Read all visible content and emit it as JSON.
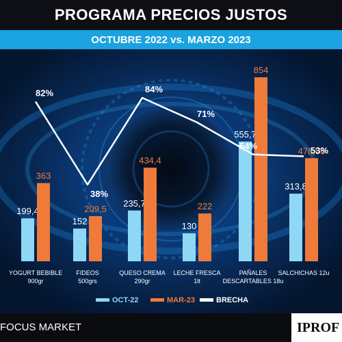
{
  "header": {
    "title": "PROGRAMA PRECIOS JUSTOS",
    "subtitle": "OCTUBRE 2022 vs. MARZO 2023"
  },
  "footer": {
    "source": "FOCUS MARKET",
    "brand": "IPROF"
  },
  "colors": {
    "oct22": "#8fd8f5",
    "mar23": "#f07a3a",
    "brecha": "#ffffff",
    "subtitle_bar": "#1aa3e0",
    "background": "#04152e"
  },
  "chart_data": {
    "type": "bar",
    "title": "PROGRAMA PRECIOS JUSTOS",
    "subtitle": "OCTUBRE 2022 vs. MARZO 2023",
    "categories": [
      [
        "YOGURT BEBIBLE",
        "900gr"
      ],
      [
        "FIDEOS",
        "500grs"
      ],
      [
        "QUESO CREMA",
        "290gr"
      ],
      [
        "LECHE FRESCA",
        "1lt"
      ],
      [
        "PAÑALES",
        "DESCARTABLES 18u"
      ],
      [
        "SALCHICHAS 12u"
      ]
    ],
    "series": [
      {
        "name": "OCT-22",
        "values": [
          199.4,
          152,
          235.7,
          130,
          555.7,
          313.8
        ],
        "labels": [
          "199,4",
          "152",
          "235,7",
          "130",
          "555,7",
          "313,8"
        ]
      },
      {
        "name": "MAR-23",
        "values": [
          363,
          209.5,
          434.4,
          222,
          854,
          478.56
        ],
        "labels": [
          "363",
          "209,5",
          "434,4",
          "222",
          "854",
          "478,56"
        ]
      }
    ],
    "line": {
      "name": "BRECHA",
      "values": [
        82,
        38,
        84,
        71,
        54,
        53
      ],
      "labels": [
        "82%",
        "38%",
        "84%",
        "71%",
        "54%",
        "53%"
      ]
    },
    "legend": [
      "OCT-22",
      "MAR-23",
      "BRECHA"
    ],
    "legend_position": "bottom",
    "grid": false
  }
}
